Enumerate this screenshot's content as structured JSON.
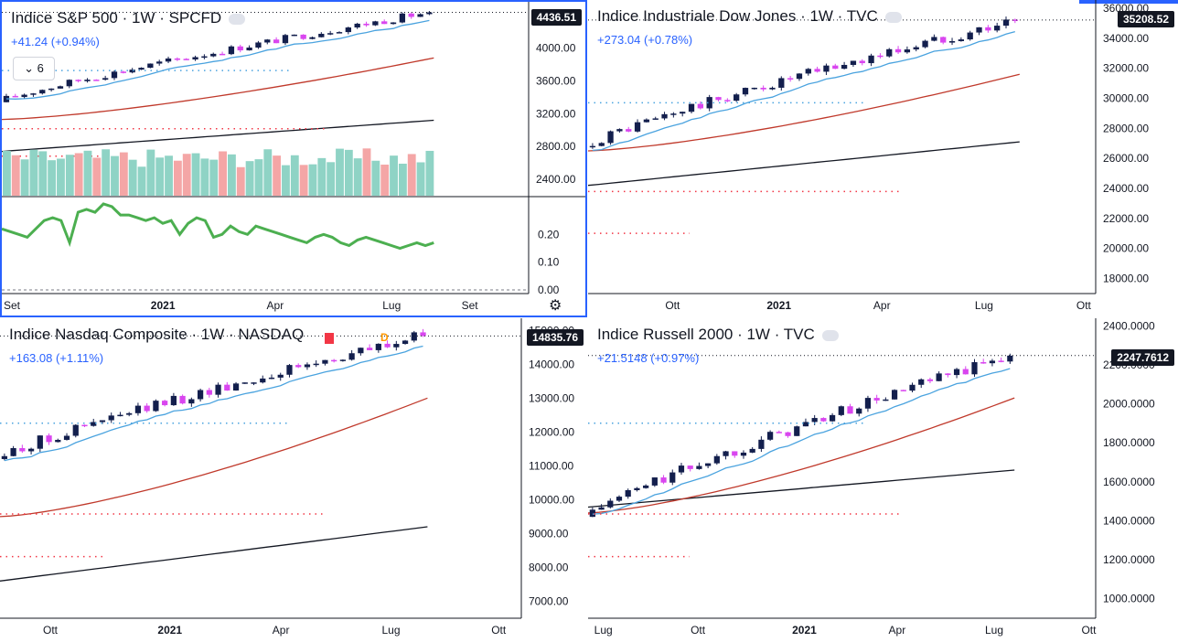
{
  "colors": {
    "up": "#131f4d",
    "down": "#d946ef",
    "ema_fast": "#4aa3df",
    "ma_mid": "#c0392b",
    "ma_long": "#131722",
    "vol_up": "#8fd3c5",
    "vol_down": "#f4a6a6",
    "osc": "#4caf50",
    "dot_blue": "#4aa3df",
    "dot_red": "#f23645",
    "marker_green": "#26a69a",
    "marker_red": "#f23645",
    "marker_orange": "#ff9800",
    "axis_text": "#131722",
    "grid": "#f0f3fa"
  },
  "panels": [
    {
      "id": "sp500",
      "title": "Indice S&P 500 · 1W · SPCFD",
      "change": "+41.24 (+0.94%)",
      "interval_pill": "6",
      "last_price_label": "4436.51",
      "last_price": 4436.51,
      "show_volume": true,
      "show_oscillator": true,
      "gear_icon": "gear-icon",
      "chart_data": {
        "type": "candlestick",
        "y_ticks": [
          "4000.00",
          "3600.00",
          "3200.00",
          "2800.00",
          "2400.00"
        ],
        "y_tick_values": [
          4000,
          3600,
          3200,
          2800,
          2400
        ],
        "ylim": [
          2200,
          4520
        ],
        "x_ticks": [
          "Set",
          "2021",
          "Apr",
          "Lug",
          "Set"
        ],
        "x_tick_pos": [
          0.0,
          0.3,
          0.52,
          0.74,
          0.89
        ],
        "data_span": 0.82,
        "start": 3340,
        "end": 4436,
        "ma_mid_range": [
          3130,
          3880
        ],
        "ma_long_range": [
          2740,
          3120
        ],
        "osc_ticks": [
          "0.20",
          "0.10",
          "0.00"
        ],
        "osc_tick_values": [
          0.2,
          0.1,
          0.0
        ],
        "osc_values": [
          0.22,
          0.21,
          0.2,
          0.19,
          0.22,
          0.25,
          0.26,
          0.25,
          0.17,
          0.28,
          0.29,
          0.28,
          0.31,
          0.3,
          0.27,
          0.27,
          0.26,
          0.25,
          0.26,
          0.24,
          0.25,
          0.2,
          0.24,
          0.26,
          0.25,
          0.19,
          0.2,
          0.23,
          0.21,
          0.2,
          0.23,
          0.22,
          0.21,
          0.2,
          0.19,
          0.18,
          0.17,
          0.19,
          0.2,
          0.19,
          0.17,
          0.16,
          0.18,
          0.19,
          0.18,
          0.17,
          0.16,
          0.15,
          0.16,
          0.17,
          0.16,
          0.17
        ]
      }
    },
    {
      "id": "dowjones",
      "title": "Indice Industriale Dow Jones · 1W · TVC",
      "change": "+273.04 (+0.78%)",
      "last_price_label": "35208.52",
      "last_price": 35208.52,
      "show_volume": false,
      "show_oscillator": false,
      "chart_data": {
        "type": "candlestick",
        "y_ticks": [
          "36000.00",
          "34000.00",
          "32000.00",
          "30000.00",
          "28000.00",
          "26000.00",
          "24000.00",
          "22000.00",
          "20000.00",
          "18000.00"
        ],
        "y_tick_values": [
          36000,
          34000,
          32000,
          30000,
          28000,
          26000,
          24000,
          22000,
          20000,
          18000
        ],
        "ylim": [
          17000,
          36300
        ],
        "x_ticks": [
          "Ott",
          "2021",
          "Apr",
          "Lug",
          "Ott"
        ],
        "x_tick_pos": [
          0.17,
          0.37,
          0.58,
          0.78,
          0.98
        ],
        "data_span": 0.85,
        "start": 26800,
        "end": 35208,
        "ma_mid_range": [
          26500,
          31600
        ],
        "ma_long_range": [
          24200,
          27100
        ]
      }
    },
    {
      "id": "nasdaq",
      "title": "Indice Nasdaq Composite · 1W · NASDAQ",
      "change": "+163.08 (+1.11%)",
      "last_price_label": "14835.76",
      "last_price": 14835.76,
      "show_volume": false,
      "show_oscillator": false,
      "flag_letter": "D",
      "chart_data": {
        "type": "candlestick",
        "y_ticks": [
          "15000.00",
          "14000.00",
          "13000.00",
          "12000.00",
          "11000.00",
          "10000.00",
          "9000.00",
          "8000.00",
          "7000.00"
        ],
        "y_tick_values": [
          15000,
          14000,
          13000,
          12000,
          11000,
          10000,
          9000,
          8000,
          7000
        ],
        "ylim": [
          6500,
          15250
        ],
        "x_ticks": [
          "Ott",
          "2021",
          "Apr",
          "Lug",
          "Ott"
        ],
        "x_tick_pos": [
          0.1,
          0.32,
          0.54,
          0.75,
          0.96
        ],
        "data_span": 0.82,
        "start": 11200,
        "end": 14835,
        "ma_mid_range": [
          9500,
          13000
        ],
        "ma_long_range": [
          7600,
          9200
        ]
      }
    },
    {
      "id": "russell",
      "title": "Indice Russell 2000 · 1W · TVC",
      "change": "+21.5148 (+0.97%)",
      "last_price_label": "2247.7612",
      "last_price": 2247.7612,
      "show_volume": false,
      "show_oscillator": false,
      "chart_data": {
        "type": "candlestick",
        "y_ticks": [
          "2400.0000",
          "2200.0000",
          "2000.0000",
          "1800.0000",
          "1600.0000",
          "1400.0000",
          "1200.0000",
          "1000.0000"
        ],
        "y_tick_values": [
          2400,
          2200,
          2000,
          1800,
          1600,
          1400,
          1200,
          1000
        ],
        "ylim": [
          900,
          2420
        ],
        "x_ticks": [
          "Lug",
          "Ott",
          "2021",
          "Apr",
          "Lug",
          "Ott"
        ],
        "x_tick_pos": [
          0.03,
          0.22,
          0.42,
          0.61,
          0.8,
          0.99
        ],
        "data_span": 0.84,
        "start": 1420,
        "end": 2247,
        "ma_mid_range": [
          1440,
          2030
        ],
        "ma_long_range": [
          1470,
          1660
        ]
      }
    }
  ]
}
